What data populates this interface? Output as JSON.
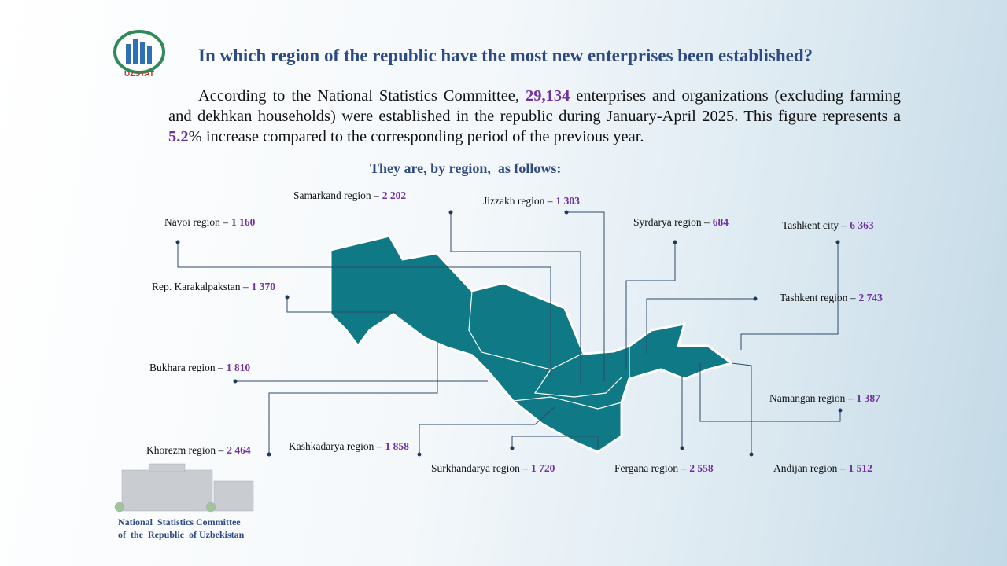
{
  "logo": {
    "text": "UZSTAT"
  },
  "header": {
    "title": "In which region of the republic have the most new enterprises been established?"
  },
  "intro": {
    "text_before": "According to the National Statistics Committee, ",
    "total": "29,134",
    "text_middle": " enterprises and organizations (excluding farming and dekhkan households) were established in the republic during January-April 2025. This figure represents a ",
    "growth": "5.2",
    "text_after": "% increase compared to the corresponding period of the previous year."
  },
  "subtitle": "They are, by region,  as follows:",
  "regions": [
    {
      "name": "Samarkand region –",
      "value": "2 202"
    },
    {
      "name": "Jizzakh region –",
      "value": "1 303"
    },
    {
      "name": "Navoi region –",
      "value": "1 160"
    },
    {
      "name": "Syrdarya region –",
      "value": "684"
    },
    {
      "name": "Tashkent city –",
      "value": "6 363"
    },
    {
      "name": "Rep. Karakalpakstan –",
      "value": "1 370"
    },
    {
      "name": "Tashkent region –",
      "value": "2 743"
    },
    {
      "name": "Bukhara region –",
      "value": "1 810"
    },
    {
      "name": "Namangan region –",
      "value": "1 387"
    },
    {
      "name": "Khorezm region –",
      "value": "2 464"
    },
    {
      "name": "Kashkadarya region –",
      "value": "1 858"
    },
    {
      "name": "Surkhandarya region –",
      "value": "1 720"
    },
    {
      "name": "Fergana region –",
      "value": "2 558"
    },
    {
      "name": "Andijan region –",
      "value": "1 512"
    }
  ],
  "footer": {
    "line1": "National  Statistics Committee",
    "line2": "of  the  Republic  of Uzbekistan"
  }
}
